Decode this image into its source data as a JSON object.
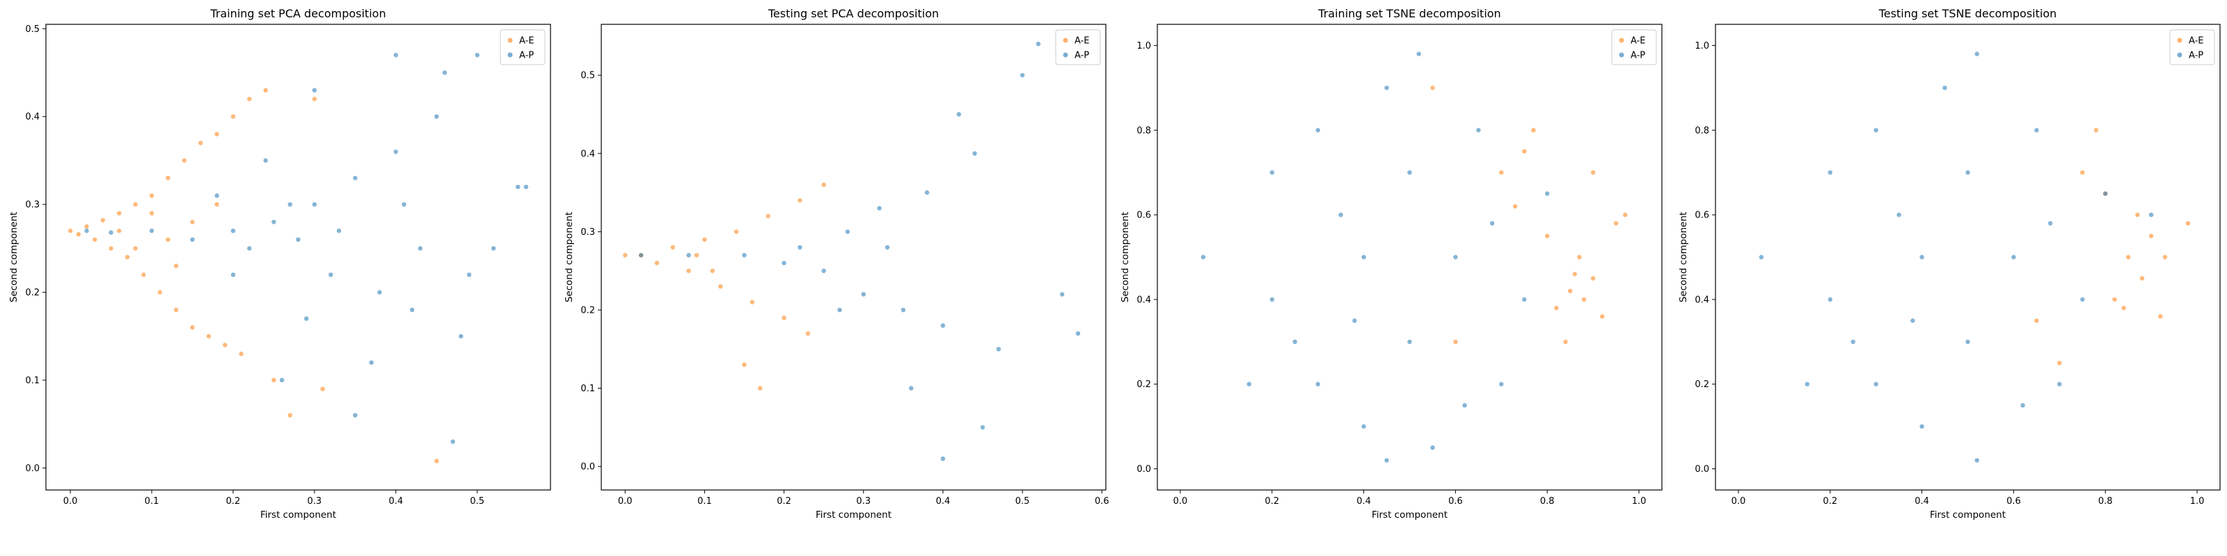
{
  "colors": {
    "series_AE": "#ff7f0e",
    "series_AP": "#1f77b4"
  },
  "chart_data": [
    {
      "type": "scatter",
      "title": "Training set PCA decomposition",
      "xlabel": "First component",
      "ylabel": "Second component",
      "xlim": [
        -0.03,
        0.59
      ],
      "ylim": [
        -0.025,
        0.505
      ],
      "xticks": [
        0.0,
        0.1,
        0.2,
        0.3,
        0.4,
        0.5
      ],
      "yticks": [
        0.0,
        0.1,
        0.2,
        0.3,
        0.4,
        0.5
      ],
      "xtick_labels": [
        "0.0",
        "0.1",
        "0.2",
        "0.3",
        "0.4",
        "0.5"
      ],
      "ytick_labels": [
        "0.0",
        "0.1",
        "0.2",
        "0.3",
        "0.4",
        "0.5"
      ],
      "legend": {
        "position": "top-right",
        "entries": [
          "A-E",
          "A-P"
        ]
      },
      "series": [
        {
          "name": "A-E",
          "color": "#ff7f0e",
          "points": [
            [
              0.0,
              0.27
            ],
            [
              0.01,
              0.266
            ],
            [
              0.02,
              0.275
            ],
            [
              0.03,
              0.26
            ],
            [
              0.04,
              0.282
            ],
            [
              0.05,
              0.25
            ],
            [
              0.06,
              0.29
            ],
            [
              0.07,
              0.24
            ],
            [
              0.08,
              0.3
            ],
            [
              0.09,
              0.22
            ],
            [
              0.1,
              0.31
            ],
            [
              0.11,
              0.2
            ],
            [
              0.12,
              0.33
            ],
            [
              0.13,
              0.18
            ],
            [
              0.14,
              0.35
            ],
            [
              0.15,
              0.16
            ],
            [
              0.16,
              0.37
            ],
            [
              0.17,
              0.15
            ],
            [
              0.18,
              0.38
            ],
            [
              0.19,
              0.14
            ],
            [
              0.2,
              0.4
            ],
            [
              0.21,
              0.13
            ],
            [
              0.22,
              0.42
            ],
            [
              0.24,
              0.43
            ],
            [
              0.25,
              0.1
            ],
            [
              0.27,
              0.06
            ],
            [
              0.3,
              0.42
            ],
            [
              0.31,
              0.09
            ],
            [
              0.45,
              0.008
            ],
            [
              0.12,
              0.26
            ],
            [
              0.15,
              0.28
            ],
            [
              0.08,
              0.25
            ],
            [
              0.06,
              0.27
            ],
            [
              0.1,
              0.29
            ],
            [
              0.13,
              0.23
            ],
            [
              0.18,
              0.3
            ]
          ]
        },
        {
          "name": "A-P",
          "color": "#1f77b4",
          "points": [
            [
              0.02,
              0.27
            ],
            [
              0.05,
              0.268
            ],
            [
              0.1,
              0.27
            ],
            [
              0.15,
              0.26
            ],
            [
              0.2,
              0.27
            ],
            [
              0.22,
              0.25
            ],
            [
              0.25,
              0.28
            ],
            [
              0.28,
              0.26
            ],
            [
              0.3,
              0.3
            ],
            [
              0.32,
              0.22
            ],
            [
              0.35,
              0.33
            ],
            [
              0.38,
              0.2
            ],
            [
              0.4,
              0.36
            ],
            [
              0.42,
              0.18
            ],
            [
              0.45,
              0.4
            ],
            [
              0.48,
              0.15
            ],
            [
              0.5,
              0.47
            ],
            [
              0.52,
              0.25
            ],
            [
              0.55,
              0.32
            ],
            [
              0.56,
              0.32
            ],
            [
              0.46,
              0.45
            ],
            [
              0.47,
              0.03
            ],
            [
              0.4,
              0.47
            ],
            [
              0.35,
              0.06
            ],
            [
              0.3,
              0.43
            ],
            [
              0.26,
              0.1
            ],
            [
              0.24,
              0.35
            ],
            [
              0.18,
              0.31
            ],
            [
              0.2,
              0.22
            ],
            [
              0.27,
              0.3
            ],
            [
              0.33,
              0.27
            ],
            [
              0.43,
              0.25
            ],
            [
              0.49,
              0.22
            ],
            [
              0.37,
              0.12
            ],
            [
              0.41,
              0.3
            ],
            [
              0.29,
              0.17
            ]
          ]
        }
      ]
    },
    {
      "type": "scatter",
      "title": "Testing set PCA decomposition",
      "xlabel": "First component",
      "ylabel": "Second component",
      "xlim": [
        -0.03,
        0.605
      ],
      "ylim": [
        -0.03,
        0.565
      ],
      "xticks": [
        0.0,
        0.1,
        0.2,
        0.3,
        0.4,
        0.5,
        0.6
      ],
      "yticks": [
        0.0,
        0.1,
        0.2,
        0.3,
        0.4,
        0.5
      ],
      "xtick_labels": [
        "0.0",
        "0.1",
        "0.2",
        "0.3",
        "0.4",
        "0.5",
        "0.6"
      ],
      "ytick_labels": [
        "0.0",
        "0.1",
        "0.2",
        "0.3",
        "0.4",
        "0.5"
      ],
      "legend": {
        "position": "top-right",
        "entries": [
          "A-E",
          "A-P"
        ]
      },
      "series": [
        {
          "name": "A-E",
          "color": "#ff7f0e",
          "points": [
            [
              0.0,
              0.27
            ],
            [
              0.02,
              0.27
            ],
            [
              0.04,
              0.26
            ],
            [
              0.06,
              0.28
            ],
            [
              0.08,
              0.25
            ],
            [
              0.1,
              0.29
            ],
            [
              0.12,
              0.23
            ],
            [
              0.14,
              0.3
            ],
            [
              0.16,
              0.21
            ],
            [
              0.18,
              0.32
            ],
            [
              0.2,
              0.19
            ],
            [
              0.22,
              0.34
            ],
            [
              0.15,
              0.13
            ],
            [
              0.17,
              0.1
            ],
            [
              0.25,
              0.36
            ],
            [
              0.23,
              0.17
            ],
            [
              0.11,
              0.25
            ],
            [
              0.09,
              0.27
            ]
          ]
        },
        {
          "name": "A-P",
          "color": "#1f77b4",
          "points": [
            [
              0.02,
              0.27
            ],
            [
              0.08,
              0.27
            ],
            [
              0.15,
              0.27
            ],
            [
              0.2,
              0.26
            ],
            [
              0.22,
              0.28
            ],
            [
              0.25,
              0.25
            ],
            [
              0.28,
              0.3
            ],
            [
              0.3,
              0.22
            ],
            [
              0.32,
              0.33
            ],
            [
              0.35,
              0.2
            ],
            [
              0.38,
              0.35
            ],
            [
              0.4,
              0.18
            ],
            [
              0.42,
              0.45
            ],
            [
              0.45,
              0.05
            ],
            [
              0.5,
              0.5
            ],
            [
              0.52,
              0.54
            ],
            [
              0.55,
              0.22
            ],
            [
              0.57,
              0.17
            ],
            [
              0.4,
              0.01
            ],
            [
              0.47,
              0.15
            ],
            [
              0.44,
              0.4
            ],
            [
              0.36,
              0.1
            ],
            [
              0.27,
              0.2
            ],
            [
              0.33,
              0.28
            ]
          ]
        }
      ]
    },
    {
      "type": "scatter",
      "title": "Training set TSNE decomposition",
      "xlabel": "First component",
      "ylabel": "Second component",
      "xlim": [
        -0.05,
        1.05
      ],
      "ylim": [
        -0.05,
        1.05
      ],
      "xticks": [
        0.0,
        0.2,
        0.4,
        0.6,
        0.8,
        1.0
      ],
      "yticks": [
        0.0,
        0.2,
        0.4,
        0.6,
        0.8,
        1.0
      ],
      "xtick_labels": [
        "0.0",
        "0.2",
        "0.4",
        "0.6",
        "0.8",
        "1.0"
      ],
      "ytick_labels": [
        "0.0",
        "0.2",
        "0.4",
        "0.6",
        "0.8",
        "1.0"
      ],
      "legend": {
        "position": "top-right",
        "entries": [
          "A-E",
          "A-P"
        ]
      },
      "series": [
        {
          "name": "A-E",
          "color": "#ff7f0e",
          "points": [
            [
              0.85,
              0.42
            ],
            [
              0.88,
              0.4
            ],
            [
              0.9,
              0.45
            ],
            [
              0.82,
              0.38
            ],
            [
              0.87,
              0.5
            ],
            [
              0.92,
              0.36
            ],
            [
              0.95,
              0.58
            ],
            [
              0.97,
              0.6
            ],
            [
              0.75,
              0.75
            ],
            [
              0.77,
              0.8
            ],
            [
              0.7,
              0.7
            ],
            [
              0.8,
              0.55
            ],
            [
              0.6,
              0.3
            ],
            [
              0.55,
              0.9
            ],
            [
              0.84,
              0.3
            ],
            [
              0.9,
              0.7
            ],
            [
              0.73,
              0.62
            ],
            [
              0.86,
              0.46
            ]
          ]
        },
        {
          "name": "A-P",
          "color": "#1f77b4",
          "points": [
            [
              0.05,
              0.5
            ],
            [
              0.2,
              0.7
            ],
            [
              0.2,
              0.4
            ],
            [
              0.3,
              0.2
            ],
            [
              0.3,
              0.8
            ],
            [
              0.4,
              0.1
            ],
            [
              0.4,
              0.5
            ],
            [
              0.45,
              0.9
            ],
            [
              0.5,
              0.3
            ],
            [
              0.5,
              0.7
            ],
            [
              0.55,
              0.05
            ],
            [
              0.6,
              0.5
            ],
            [
              0.65,
              0.8
            ],
            [
              0.7,
              0.2
            ],
            [
              0.75,
              0.4
            ],
            [
              0.8,
              0.65
            ],
            [
              0.25,
              0.3
            ],
            [
              0.35,
              0.6
            ],
            [
              0.45,
              0.02
            ],
            [
              0.52,
              0.98
            ],
            [
              0.62,
              0.15
            ],
            [
              0.38,
              0.35
            ],
            [
              0.15,
              0.2
            ],
            [
              0.68,
              0.58
            ]
          ]
        }
      ]
    },
    {
      "type": "scatter",
      "title": "Testing set TSNE decomposition",
      "xlabel": "First component",
      "ylabel": "Second component",
      "xlim": [
        -0.05,
        1.05
      ],
      "ylim": [
        -0.05,
        1.05
      ],
      "xticks": [
        0.0,
        0.2,
        0.4,
        0.6,
        0.8,
        1.0
      ],
      "yticks": [
        0.0,
        0.2,
        0.4,
        0.6,
        0.8,
        1.0
      ],
      "xtick_labels": [
        "0.0",
        "0.2",
        "0.4",
        "0.6",
        "0.8",
        "1.0"
      ],
      "ytick_labels": [
        "0.0",
        "0.2",
        "0.4",
        "0.6",
        "0.8",
        "1.0"
      ],
      "legend": {
        "position": "top-right",
        "entries": [
          "A-E",
          "A-P"
        ]
      },
      "series": [
        {
          "name": "A-E",
          "color": "#ff7f0e",
          "points": [
            [
              0.85,
              0.5
            ],
            [
              0.88,
              0.45
            ],
            [
              0.9,
              0.55
            ],
            [
              0.82,
              0.4
            ],
            [
              0.87,
              0.6
            ],
            [
              0.92,
              0.36
            ],
            [
              0.98,
              0.58
            ],
            [
              0.78,
              0.8
            ],
            [
              0.75,
              0.7
            ],
            [
              0.8,
              0.65
            ],
            [
              0.65,
              0.35
            ],
            [
              0.7,
              0.25
            ],
            [
              0.93,
              0.5
            ],
            [
              0.84,
              0.38
            ]
          ]
        },
        {
          "name": "A-P",
          "color": "#1f77b4",
          "points": [
            [
              0.05,
              0.5
            ],
            [
              0.2,
              0.7
            ],
            [
              0.2,
              0.4
            ],
            [
              0.3,
              0.2
            ],
            [
              0.3,
              0.8
            ],
            [
              0.4,
              0.1
            ],
            [
              0.4,
              0.5
            ],
            [
              0.45,
              0.9
            ],
            [
              0.5,
              0.3
            ],
            [
              0.5,
              0.7
            ],
            [
              0.52,
              0.02
            ],
            [
              0.6,
              0.5
            ],
            [
              0.65,
              0.8
            ],
            [
              0.7,
              0.2
            ],
            [
              0.75,
              0.4
            ],
            [
              0.8,
              0.65
            ],
            [
              0.25,
              0.3
            ],
            [
              0.35,
              0.6
            ],
            [
              0.52,
              0.98
            ],
            [
              0.62,
              0.15
            ],
            [
              0.38,
              0.35
            ],
            [
              0.15,
              0.2
            ],
            [
              0.68,
              0.58
            ],
            [
              0.9,
              0.6
            ]
          ]
        }
      ]
    }
  ]
}
